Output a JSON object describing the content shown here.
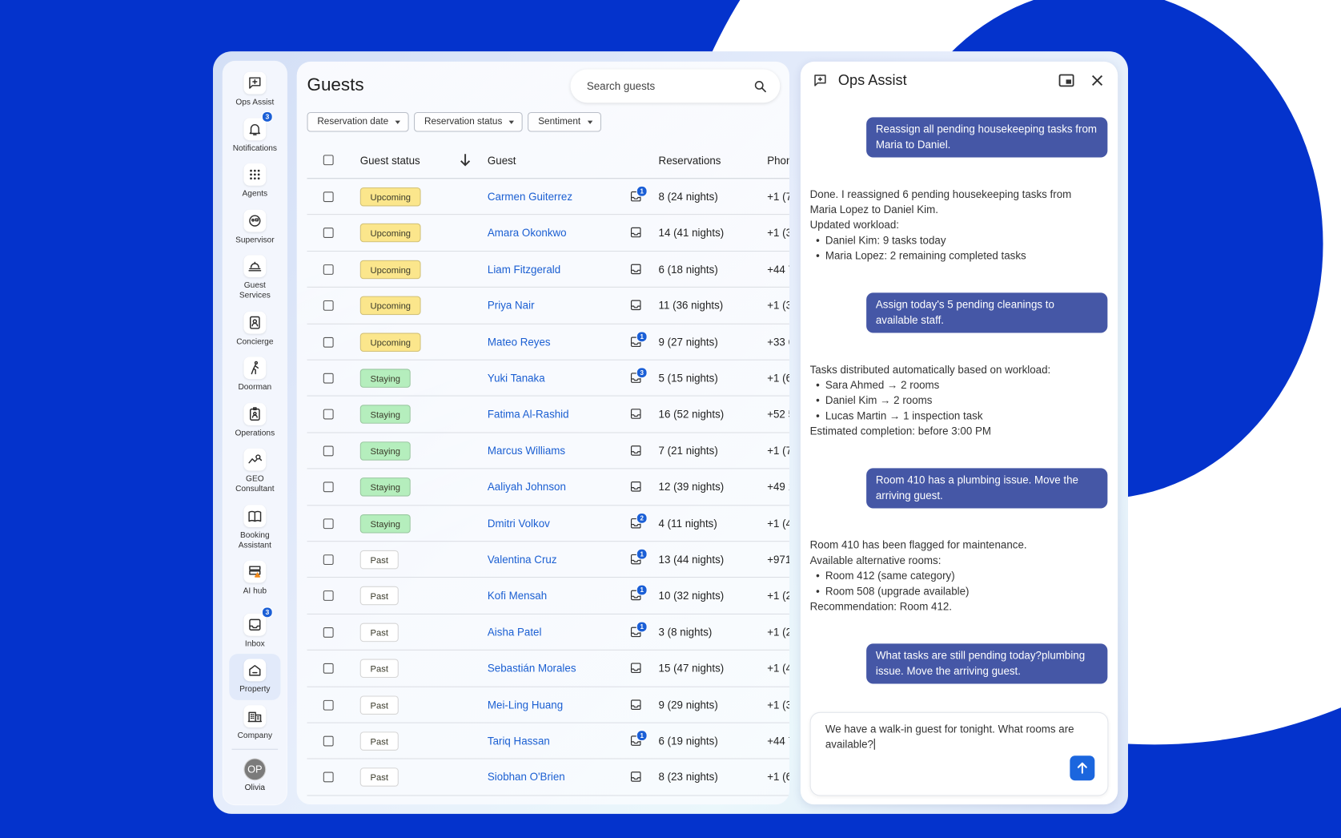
{
  "sidebar": {
    "items": [
      {
        "label": "Ops Assist"
      },
      {
        "label": "Notifications",
        "badge": 3
      },
      {
        "label": "Agents"
      },
      {
        "label": "Supervisor"
      },
      {
        "label": "Guest Services"
      },
      {
        "label": "Concierge"
      },
      {
        "label": "Doorman"
      },
      {
        "label": "Operations"
      },
      {
        "label": "GEO Consultant"
      },
      {
        "label": "Booking Assistant"
      },
      {
        "label": "AI hub"
      },
      {
        "label": "Inbox",
        "badge": 3
      },
      {
        "label": "Property",
        "selected": true
      },
      {
        "label": "Company"
      }
    ],
    "user": {
      "initials": "OP",
      "name": "Olivia"
    }
  },
  "guests": {
    "title": "Guests",
    "search_placeholder": "Search guests",
    "filters": [
      "Reservation date",
      "Reservation status",
      "Sentiment"
    ],
    "columns": {
      "status": "Guest status",
      "guest": "Guest",
      "reservations": "Reservations",
      "phone": "Phone"
    },
    "rows": [
      {
        "status": "Upcoming",
        "chip_color": "#fbe68c",
        "guest": "Carmen Guiterrez",
        "message_badge": 1,
        "reservations": "8 (24 nights)",
        "phone": "+1 (7"
      },
      {
        "status": "Upcoming",
        "chip_color": "#fbe68c",
        "guest": "Amara Okonkwo",
        "reservations": "14 (41 nights)",
        "phone": "+1 (3"
      },
      {
        "status": "Upcoming",
        "chip_color": "#fbe68c",
        "guest": "Liam Fitzgerald",
        "reservations": "6 (18 nights)",
        "phone": "+44 7"
      },
      {
        "status": "Upcoming",
        "chip_color": "#fbe68c",
        "guest": "Priya Nair",
        "reservations": "11 (36 nights)",
        "phone": "+1 (3"
      },
      {
        "status": "Upcoming",
        "chip_color": "#fbe68c",
        "guest": "Mateo Reyes",
        "message_badge": 1,
        "reservations": "9 (27 nights)",
        "phone": "+33 6"
      },
      {
        "status": "Staying",
        "chip_color": "#b5eebd",
        "guest": "Yuki Tanaka",
        "message_badge": 3,
        "reservations": "5 (15 nights)",
        "phone": "+1 (6"
      },
      {
        "status": "Staying",
        "chip_color": "#b5eebd",
        "guest": "Fatima Al-Rashid",
        "reservations": "16 (52 nights)",
        "phone": "+52 5"
      },
      {
        "status": "Staying",
        "chip_color": "#b5eebd",
        "guest": "Marcus Williams",
        "reservations": "7 (21 nights)",
        "phone": "+1 (7"
      },
      {
        "status": "Staying",
        "chip_color": "#b5eebd",
        "guest": "Aaliyah Johnson",
        "reservations": "12 (39 nights)",
        "phone": "+49 1"
      },
      {
        "status": "Staying",
        "chip_color": "#b5eebd",
        "guest": "Dmitri Volkov",
        "message_badge": 2,
        "reservations": "4 (11 nights)",
        "phone": "+1 (4"
      },
      {
        "status": "Past",
        "chip_color": "#ffffff",
        "guest": "Valentina Cruz",
        "message_badge": 1,
        "reservations": "13 (44 nights)",
        "phone": "+971"
      },
      {
        "status": "Past",
        "chip_color": "#ffffff",
        "guest": "Kofi Mensah",
        "message_badge": 1,
        "reservations": "10 (32 nights)",
        "phone": "+1 (2"
      },
      {
        "status": "Past",
        "chip_color": "#ffffff",
        "guest": "Aisha Patel",
        "message_badge": 1,
        "reservations": "3 (8 nights)",
        "phone": "+1 (2"
      },
      {
        "status": "Past",
        "chip_color": "#ffffff",
        "guest": "Sebastián Morales",
        "reservations": "15 (47 nights)",
        "phone": "+1 (4"
      },
      {
        "status": "Past",
        "chip_color": "#ffffff",
        "guest": "Mei-Ling Huang",
        "reservations": "9 (29 nights)",
        "phone": "+1 (3"
      },
      {
        "status": "Past",
        "chip_color": "#ffffff",
        "guest": "Tariq Hassan",
        "message_badge": 1,
        "reservations": "6 (19 nights)",
        "phone": "+44 7"
      },
      {
        "status": "Past",
        "chip_color": "#ffffff",
        "guest": "Siobhan O'Brien",
        "reservations": "8 (23 nights)",
        "phone": "+1 (6"
      }
    ]
  },
  "assistant": {
    "title": "Ops Assist",
    "messages": [
      {
        "text": "Reassign all pending housekeeping tasks from Maria to Daniel."
      },
      {
        "lines": [
          {
            "text": "Done. I reassigned 6 pending housekeeping tasks from Maria Lopez to Daniel Kim."
          },
          {
            "text": "Updated workload:"
          },
          {
            "bullet": "Daniel Kim: 9 tasks today"
          },
          {
            "bullet": "Maria Lopez: 2 remaining completed tasks"
          }
        ]
      },
      {
        "text": "Assign today's 5 pending cleanings to available staff."
      },
      {
        "lines": [
          {
            "text": "Tasks distributed automatically based on workload:"
          },
          {
            "bullet": "Sara Ahmed → 2 rooms"
          },
          {
            "bullet": "Daniel Kim → 2 rooms"
          },
          {
            "bullet": "Lucas Martin → 1 inspection task"
          },
          {
            "text": "Estimated completion: before 3:00 PM"
          }
        ]
      },
      {
        "text": "Room 410 has a plumbing issue. Move the arriving guest."
      },
      {
        "lines": [
          {
            "text": "Room 410 has been flagged for maintenance."
          },
          {
            "text": "Available alternative rooms:"
          },
          {
            "bullet": "Room 412 (same category)"
          },
          {
            "bullet": "Room 508 (upgrade available)"
          },
          {
            "text": "Recommendation: Room 412."
          }
        ]
      },
      {
        "text": "What tasks are still pending today?plumbing issue. Move the arriving guest."
      }
    ],
    "input": "We have a walk-in guest for tonight. What rooms are available?"
  }
}
